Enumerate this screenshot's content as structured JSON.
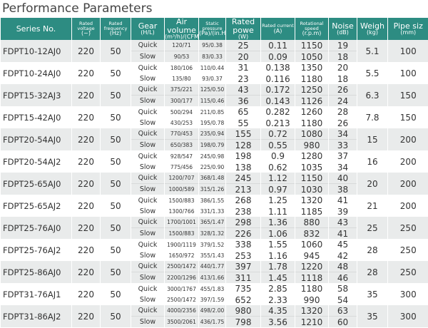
{
  "title": "Performance Parameters",
  "table": {
    "header": [
      [
        "Series No.",
        null
      ],
      [
        "Rated voltage",
        "(~)"
      ],
      [
        "Rated frequency",
        "(Hz)"
      ],
      [
        "Gear",
        "(H/L)"
      ],
      [
        "Air volume",
        "(m³/h)/(CFM)"
      ],
      [
        "Static pressure",
        "(Pa)/(in.H₂O)"
      ],
      [
        "Rated powe",
        "(W)"
      ],
      [
        "Rated current",
        "(A)"
      ],
      [
        "Rotational speed",
        "(r.p.m)"
      ],
      [
        "Noise",
        "(dB)"
      ],
      [
        "Weigh",
        "(kg)"
      ],
      [
        "Pipe siz",
        "(mm)"
      ]
    ],
    "rows": [
      {
        "model": [
          "FDPT10-12AJ0",
          "220",
          "50"
        ],
        "gears": [
          [
            "Quick",
            "120/71",
            "95/0.38",
            "25",
            "0.11",
            "1150",
            "19"
          ],
          [
            "Slow",
            "90/53",
            "83/0.33",
            "20",
            "0.09",
            "1050",
            "18"
          ]
        ],
        "tail": [
          "5.1",
          "100"
        ]
      },
      {
        "model": [
          "FDPT10-24AJ0",
          "220",
          "50"
        ],
        "gears": [
          [
            "Quick",
            "180/106",
            "110/0.44",
            "31",
            "0.138",
            "1350",
            "20"
          ],
          [
            "Slow",
            "135/80",
            "93/0.37",
            "23",
            "0.116",
            "1180",
            "18"
          ]
        ],
        "tail": [
          "5.5",
          "100"
        ]
      },
      {
        "model": [
          "FDPT15-32AJ3",
          "220",
          "50"
        ],
        "gears": [
          [
            "Quick",
            "375/221",
            "125/0.50",
            "43",
            "0.172",
            "1250",
            "26"
          ],
          [
            "Slow",
            "300/177",
            "115/0.46",
            "36",
            "0.143",
            "1126",
            "24"
          ]
        ],
        "tail": [
          "6.3",
          "150"
        ]
      },
      {
        "model": [
          "FDPT15-42AJ0",
          "220",
          "50"
        ],
        "gears": [
          [
            "Quick",
            "500/294",
            "211/0.85",
            "65",
            "0.282",
            "1260",
            "28"
          ],
          [
            "Slow",
            "430/253",
            "195/0.78",
            "55",
            "0.213",
            "1180",
            "26"
          ]
        ],
        "tail": [
          "7.8",
          "150"
        ]
      },
      {
        "model": [
          "FDPT20-54AJ0",
          "220",
          "50"
        ],
        "gears": [
          [
            "Quick",
            "770/453",
            "235/0.94",
            "155",
            "0.72",
            "1080",
            "34"
          ],
          [
            "Slow",
            "650/383",
            "198/0.79",
            "128",
            "0.55",
            "980",
            "33"
          ]
        ],
        "tail": [
          "15",
          "200"
        ]
      },
      {
        "model": [
          "FDPT20-54AJ2",
          "220",
          "50"
        ],
        "gears": [
          [
            "Quick",
            "928/547",
            "245/0.98",
            "198",
            "0.9",
            "1280",
            "37"
          ],
          [
            "Slow",
            "775/456",
            "225/0.90",
            "138",
            "0.62",
            "1035",
            "34"
          ]
        ],
        "tail": [
          "16",
          "200"
        ]
      },
      {
        "model": [
          "FDPT25-65AJ0",
          "220",
          "50"
        ],
        "gears": [
          [
            "Quick",
            "1200/707",
            "368/1.48",
            "245",
            "1.12",
            "1150",
            "40"
          ],
          [
            "Slow",
            "1000/589",
            "315/1.26",
            "213",
            "0.97",
            "1030",
            "38"
          ]
        ],
        "tail": [
          "20",
          "200"
        ]
      },
      {
        "model": [
          "FDPT25-65AJ2",
          "220",
          "50"
        ],
        "gears": [
          [
            "Quick",
            "1500/883",
            "386/1.55",
            "268",
            "1.25",
            "1320",
            "41"
          ],
          [
            "Slow",
            "1300/766",
            "331/1.33",
            "238",
            "1.11",
            "1185",
            "39"
          ]
        ],
        "tail": [
          "21",
          "200"
        ]
      },
      {
        "model": [
          "FDPT25-76AJ0",
          "220",
          "50"
        ],
        "gears": [
          [
            "Quick",
            "1700/1001",
            "365/1.47",
            "298",
            "1.36",
            "880",
            "43"
          ],
          [
            "Slow",
            "1500/883",
            "328/1.32",
            "226",
            "1.06",
            "832",
            "41"
          ]
        ],
        "tail": [
          "25",
          "250"
        ]
      },
      {
        "model": [
          "FDPT25-76AJ2",
          "220",
          "50"
        ],
        "gears": [
          [
            "Quick",
            "1900/1119",
            "379/1.52",
            "338",
            "1.55",
            "1060",
            "45"
          ],
          [
            "Slow",
            "1650/972",
            "355/1.43",
            "253",
            "1.16",
            "945",
            "42"
          ]
        ],
        "tail": [
          "28",
          "250"
        ]
      },
      {
        "model": [
          "FDPT25-86AJ0",
          "220",
          "50"
        ],
        "gears": [
          [
            "Quick",
            "2500/1472",
            "440/1.77",
            "397",
            "1.78",
            "1220",
            "48"
          ],
          [
            "Slow",
            "2200/1296",
            "413/1.66",
            "311",
            "1.45",
            "1118",
            "46"
          ]
        ],
        "tail": [
          "28",
          "250"
        ]
      },
      {
        "model": [
          "FDPT31-76AJ1",
          "220",
          "50"
        ],
        "gears": [
          [
            "Quick",
            "3000/1767",
            "455/1.83",
            "735",
            "2.85",
            "1180",
            "58"
          ],
          [
            "Slow",
            "2500/1472",
            "397/1.59",
            "652",
            "2.33",
            "990",
            "54"
          ]
        ],
        "tail": [
          "35",
          "300"
        ]
      },
      {
        "model": [
          "FDPT31-86AJ2",
          "220",
          "50"
        ],
        "gears": [
          [
            "Quick",
            "4000/2356",
            "498/2.00",
            "980",
            "4.35",
            "1320",
            "63"
          ],
          [
            "Slow",
            "3500/2061",
            "436/1.75",
            "798",
            "3.56",
            "1210",
            "60"
          ]
        ],
        "tail": [
          "35",
          "300"
        ]
      }
    ]
  }
}
